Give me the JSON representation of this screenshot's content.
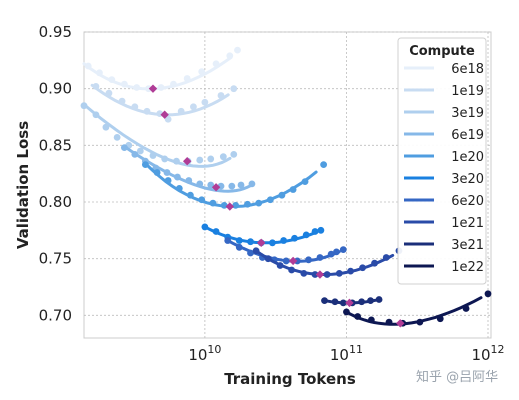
{
  "chart_data": {
    "type": "scatter",
    "title": "",
    "xlabel": "Training Tokens",
    "ylabel": "Validation Loss",
    "xscale": "log",
    "xlim": [
      1400000000.0,
      1050000000000.0
    ],
    "ylim": [
      0.68,
      0.95
    ],
    "grid": true,
    "x_ticks": [
      {
        "value": 10000000000.0,
        "label": "10^10"
      },
      {
        "value": 100000000000.0,
        "label": "10^11"
      },
      {
        "value": 1000000000000.0,
        "label": "10^12"
      }
    ],
    "y_ticks": [
      {
        "value": 0.95,
        "label": "0.95"
      },
      {
        "value": 0.9,
        "label": "0.90"
      },
      {
        "value": 0.85,
        "label": "0.85"
      },
      {
        "value": 0.8,
        "label": "0.80"
      },
      {
        "value": 0.75,
        "label": "0.75"
      },
      {
        "value": 0.7,
        "label": "0.70"
      }
    ],
    "legend_title": "Compute",
    "legend_position": "top-right",
    "optimum_marker_color": "#b03c96",
    "series": [
      {
        "name": "6e18",
        "color": "#e6effa",
        "points": [
          [
            1500000000.0,
            0.92
          ],
          [
            1800000000.0,
            0.914
          ],
          [
            2200000000.0,
            0.908
          ],
          [
            2700000000.0,
            0.904
          ],
          [
            3300000000.0,
            0.901
          ],
          [
            4000000000.0,
            0.9
          ],
          [
            4900000000.0,
            0.901
          ],
          [
            6000000000.0,
            0.904
          ],
          [
            7500000000.0,
            0.909
          ],
          [
            9500000000.0,
            0.915
          ],
          [
            12000000000.0,
            0.922
          ],
          [
            15000000000.0,
            0.929
          ],
          [
            17000000000.0,
            0.934
          ]
        ],
        "fit": [
          [
            1400000000.0,
            0.922
          ],
          [
            4300000000.0,
            0.9
          ],
          [
            17000000000.0,
            0.932
          ]
        ],
        "optimum": [
          4300000000.0,
          0.9
        ]
      },
      {
        "name": "1e19",
        "color": "#c8dcf2",
        "points": [
          [
            1700000000.0,
            0.902
          ],
          [
            2100000000.0,
            0.896
          ],
          [
            2600000000.0,
            0.889
          ],
          [
            3200000000.0,
            0.884
          ],
          [
            3900000000.0,
            0.88
          ],
          [
            4800000000.0,
            0.878
          ],
          [
            5500000000.0,
            0.873
          ],
          [
            6800000000.0,
            0.88
          ],
          [
            8300000000.0,
            0.884
          ],
          [
            10000000000.0,
            0.888
          ],
          [
            13000000000.0,
            0.894
          ],
          [
            16000000000.0,
            0.9
          ]
        ],
        "fit": [
          [
            1600000000.0,
            0.903
          ],
          [
            5200000000.0,
            0.877
          ],
          [
            16000000000.0,
            0.898
          ]
        ],
        "optimum": [
          5200000000.0,
          0.877
        ]
      },
      {
        "name": "3e19",
        "color": "#afcfee",
        "points": [
          [
            1400000000.0,
            0.885
          ],
          [
            1700000000.0,
            0.877
          ],
          [
            2000000000.0,
            0.866
          ],
          [
            2400000000.0,
            0.857
          ],
          [
            2900000000.0,
            0.85
          ],
          [
            3500000000.0,
            0.845
          ],
          [
            4300000000.0,
            0.841
          ],
          [
            5200000000.0,
            0.838
          ],
          [
            6300000000.0,
            0.836
          ],
          [
            7600000000.0,
            0.836
          ],
          [
            9200000000.0,
            0.837
          ],
          [
            11000000000.0,
            0.838
          ],
          [
            13500000000.0,
            0.84
          ],
          [
            16000000000.0,
            0.842
          ]
        ],
        "fit": [
          [
            1400000000.0,
            0.886
          ],
          [
            7500000000.0,
            0.836
          ],
          [
            16000000000.0,
            0.841
          ]
        ],
        "optimum": [
          7500000000.0,
          0.836
        ]
      },
      {
        "name": "6e19",
        "color": "#86b8e8",
        "points": [
          [
            2700000000.0,
            0.848
          ],
          [
            3200000000.0,
            0.842
          ],
          [
            3800000000.0,
            0.836
          ],
          [
            4500000000.0,
            0.83
          ],
          [
            5400000000.0,
            0.826
          ],
          [
            6400000000.0,
            0.822
          ],
          [
            7700000000.0,
            0.819
          ],
          [
            9200000000.0,
            0.816
          ],
          [
            11000000000.0,
            0.815
          ],
          [
            13000000000.0,
            0.814
          ],
          [
            15500000000.0,
            0.814
          ],
          [
            18000000000.0,
            0.815
          ],
          [
            21500000000.0,
            0.816
          ]
        ],
        "fit": [
          [
            2700000000.0,
            0.849
          ],
          [
            12000000000.0,
            0.813
          ],
          [
            22000000000.0,
            0.816
          ]
        ],
        "optimum": [
          12000000000.0,
          0.813
        ]
      },
      {
        "name": "1e20",
        "color": "#4f9de0",
        "points": [
          [
            3800000000.0,
            0.833
          ],
          [
            4600000000.0,
            0.826
          ],
          [
            5500000000.0,
            0.819
          ],
          [
            6600000000.0,
            0.812
          ],
          [
            7900000000.0,
            0.806
          ],
          [
            9500000000.0,
            0.802
          ],
          [
            11400000000.0,
            0.799
          ],
          [
            13700000000.0,
            0.797
          ],
          [
            16500000000.0,
            0.797
          ],
          [
            20000000000.0,
            0.798
          ],
          [
            24000000000.0,
            0.799
          ],
          [
            29000000000.0,
            0.802
          ],
          [
            35000000000.0,
            0.806
          ],
          [
            42000000000.0,
            0.811
          ],
          [
            51000000000.0,
            0.818
          ],
          [
            69000000000.0,
            0.833
          ]
        ],
        "fit": [
          [
            3800000000.0,
            0.834
          ],
          [
            15000000000.0,
            0.796
          ],
          [
            69000000000.0,
            0.832
          ]
        ],
        "optimum": [
          15000000000.0,
          0.796
        ]
      },
      {
        "name": "3e20",
        "color": "#1a80e0",
        "points": [
          [
            10000000000.0,
            0.778
          ],
          [
            12000000000.0,
            0.774
          ],
          [
            14500000000.0,
            0.769
          ],
          [
            17500000000.0,
            0.766
          ],
          [
            21000000000.0,
            0.765
          ],
          [
            25000000000.0,
            0.764
          ],
          [
            30000000000.0,
            0.764
          ],
          [
            36000000000.0,
            0.766
          ],
          [
            43000000000.0,
            0.768
          ],
          [
            52000000000.0,
            0.771
          ],
          [
            60000000000.0,
            0.774
          ],
          [
            66000000000.0,
            0.775
          ]
        ],
        "fit": [
          [
            10000000000.0,
            0.778
          ],
          [
            25000000000.0,
            0.764
          ],
          [
            66000000000.0,
            0.775
          ]
        ],
        "optimum": [
          25000000000.0,
          0.764
        ]
      },
      {
        "name": "6e20",
        "color": "#3567c4",
        "points": [
          [
            14500000000.0,
            0.766
          ],
          [
            17500000000.0,
            0.76
          ],
          [
            21000000000.0,
            0.755
          ],
          [
            25500000000.0,
            0.751
          ],
          [
            31000000000.0,
            0.749
          ],
          [
            37500000000.0,
            0.748
          ],
          [
            45000000000.0,
            0.748
          ],
          [
            54000000000.0,
            0.749
          ],
          [
            65000000000.0,
            0.751
          ],
          [
            78000000000.0,
            0.754
          ],
          [
            85000000000.0,
            0.756
          ],
          [
            95000000000.0,
            0.758
          ]
        ],
        "fit": [
          [
            14500000000.0,
            0.766
          ],
          [
            42000000000.0,
            0.748
          ],
          [
            95000000000.0,
            0.758
          ]
        ],
        "optimum": [
          42000000000.0,
          0.748
        ]
      },
      {
        "name": "1e21",
        "color": "#2a4ba8",
        "points": [
          [
            23000000000.0,
            0.757
          ],
          [
            28000000000.0,
            0.75
          ],
          [
            34000000000.0,
            0.744
          ],
          [
            41000000000.0,
            0.74
          ],
          [
            50000000000.0,
            0.737
          ],
          [
            60000000000.0,
            0.736
          ],
          [
            73000000000.0,
            0.736
          ],
          [
            89000000000.0,
            0.737
          ],
          [
            107000000000.0,
            0.739
          ],
          [
            130000000000.0,
            0.742
          ],
          [
            158000000000.0,
            0.746
          ],
          [
            191000000000.0,
            0.751
          ],
          [
            235000000000.0,
            0.757
          ]
        ],
        "fit": [
          [
            23000000000.0,
            0.757
          ],
          [
            65000000000.0,
            0.736
          ],
          [
            235000000000.0,
            0.756
          ]
        ],
        "optimum": [
          65000000000.0,
          0.736
        ]
      },
      {
        "name": "3e21",
        "color": "#1b2f7a",
        "points": [
          [
            70000000000.0,
            0.713
          ],
          [
            83000000000.0,
            0.712
          ],
          [
            95000000000.0,
            0.711
          ],
          [
            110000000000.0,
            0.711
          ],
          [
            128000000000.0,
            0.712
          ],
          [
            148000000000.0,
            0.713
          ],
          [
            170000000000.0,
            0.714
          ]
        ],
        "fit": [
          [
            70000000000.0,
            0.713
          ],
          [
            110000000000.0,
            0.711
          ],
          [
            170000000000.0,
            0.714
          ]
        ],
        "optimum": [
          105000000000.0,
          0.711
        ]
      },
      {
        "name": "1e22",
        "color": "#0d1752",
        "points": [
          [
            100000000000.0,
            0.703
          ],
          [
            120000000000.0,
            0.699
          ],
          [
            150000000000.0,
            0.696
          ],
          [
            200000000000.0,
            0.694
          ],
          [
            250000000000.0,
            0.693
          ],
          [
            330000000000.0,
            0.694
          ],
          [
            460000000000.0,
            0.697
          ],
          [
            700000000000.0,
            0.706
          ],
          [
            1000000000000.0,
            0.719
          ]
        ],
        "fit": [
          [
            100000000000.0,
            0.703
          ],
          [
            240000000000.0,
            0.693
          ],
          [
            1000000000000.0,
            0.719
          ]
        ],
        "optimum": [
          240000000000.0,
          0.693
        ]
      }
    ]
  },
  "watermark": "知乎 @吕阿华"
}
